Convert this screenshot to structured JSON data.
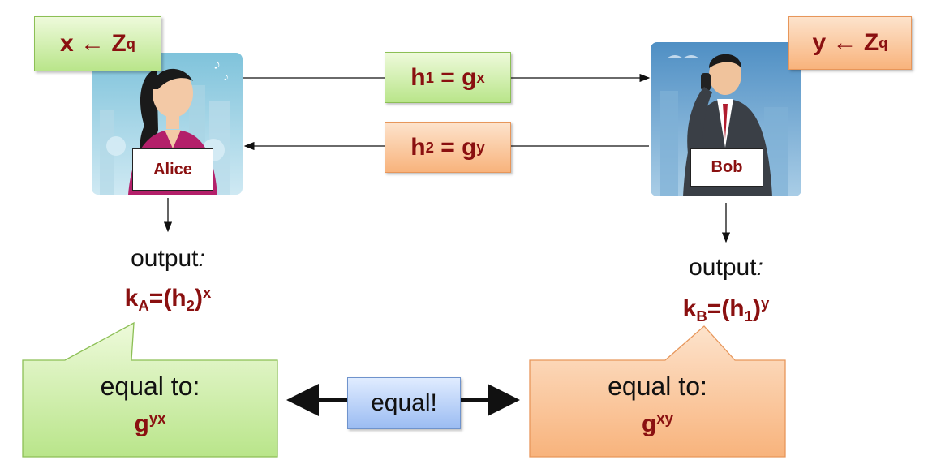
{
  "alice": {
    "name": "Alice",
    "secret": {
      "var": "x",
      "arrow": "←",
      "set": "Z",
      "set_sub": "q"
    },
    "output_label": "output",
    "output_colon": ":",
    "key": {
      "k": "k",
      "k_sub": "A",
      "eq": "=(h",
      "h_sub": "2",
      "close": ")",
      "exp": "x"
    },
    "callout": {
      "text": "equal to:",
      "base": "g",
      "exp": "yx"
    }
  },
  "bob": {
    "name": "Bob",
    "secret": {
      "var": "y",
      "arrow": "←",
      "set": "Z",
      "set_sub": "q"
    },
    "output_label": "output",
    "output_colon": ":",
    "key": {
      "k": "k",
      "k_sub": "B",
      "eq": "=(h",
      "h_sub": "1",
      "close": ")",
      "exp": "y"
    },
    "callout": {
      "text": "equal to:",
      "base": "g",
      "exp": "xy"
    }
  },
  "messages": [
    {
      "h": "h",
      "sub": "1",
      "eq": " = g",
      "exp": "x"
    },
    {
      "h": "h",
      "sub": "2",
      "eq": " = g",
      "exp": "y"
    }
  ],
  "equal_label": "equal!",
  "colors": {
    "green": "#b9e58a",
    "orange": "#f8b37c",
    "blue": "#9bbcf2",
    "dark_red": "#8a1010"
  }
}
